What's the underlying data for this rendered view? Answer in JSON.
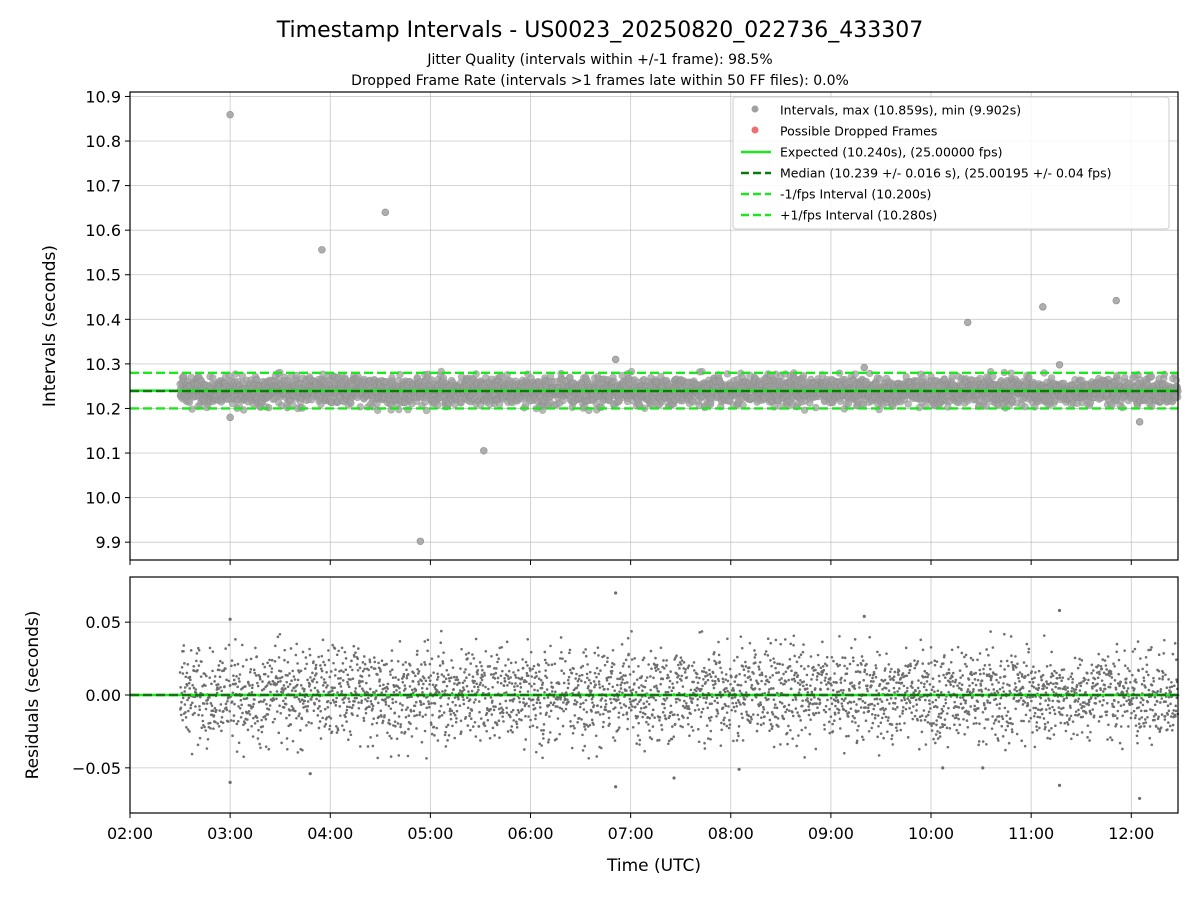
{
  "chart_data": [
    {
      "type": "scatter",
      "title": "Timestamp Intervals - US0023_20250820_022736_433307",
      "subtitle_lines": [
        "Jitter Quality (intervals within +/-1 frame): 98.5%",
        "Dropped Frame Rate (intervals >1 frames late within 50 FF files): 0.0%"
      ],
      "xlabel": "",
      "ylabel": "Intervals (seconds)",
      "x_unit": "time (UTC)",
      "xlim": [
        "02:00",
        "12:28"
      ],
      "ylim": [
        9.86,
        10.91
      ],
      "y_ticks": [
        "9.9",
        "10.0",
        "10.1",
        "10.2",
        "10.3",
        "10.4",
        "10.5",
        "10.6",
        "10.7",
        "10.8",
        "10.9"
      ],
      "x_ticks": [
        "02:00",
        "03:00",
        "04:00",
        "05:00",
        "06:00",
        "07:00",
        "08:00",
        "09:00",
        "10:00",
        "11:00",
        "12:00"
      ],
      "grid": true,
      "legend_position": "top-right",
      "legend": [
        {
          "label": "Intervals, max (10.859s), min (9.902s)",
          "kind": "marker",
          "color": "#a0a0a0"
        },
        {
          "label": "Possible Dropped Frames",
          "kind": "marker",
          "color": "#f07070"
        },
        {
          "label": "Expected (10.240s), (25.00000 fps)",
          "kind": "solid",
          "color": "#1ee61e"
        },
        {
          "label": "Median (10.239 +/- 0.016 s), (25.00195 +/- 0.04 fps)",
          "kind": "dashed",
          "color": "#0a7a0a"
        },
        {
          "label": "-1/fps Interval (10.200s)",
          "kind": "dashed",
          "color": "#1ee61e"
        },
        {
          "label": "+1/fps Interval (10.280s)",
          "kind": "dashed",
          "color": "#1ee61e"
        }
      ],
      "reference_lines": {
        "expected": 10.24,
        "median": 10.239,
        "minus_one_fps": 10.2,
        "plus_one_fps": 10.28
      },
      "series": [
        {
          "name": "Intervals, max (10.859s), min (9.902s)",
          "data_range": [
            "02:30",
            "12:28"
          ],
          "typical_center": 10.239,
          "typical_spread": 0.016,
          "outliers": [
            {
              "x": "03:00",
              "y": 10.859
            },
            {
              "x": "03:55",
              "y": 10.556
            },
            {
              "x": "04:33",
              "y": 10.64
            },
            {
              "x": "04:54",
              "y": 9.902
            },
            {
              "x": "05:32",
              "y": 10.105
            },
            {
              "x": "10:22",
              "y": 10.393
            },
            {
              "x": "11:07",
              "y": 10.428
            },
            {
              "x": "11:51",
              "y": 10.442
            },
            {
              "x": "03:00",
              "y": 10.18
            },
            {
              "x": "12:05",
              "y": 10.17
            },
            {
              "x": "06:51",
              "y": 10.31
            },
            {
              "x": "11:17",
              "y": 10.298
            },
            {
              "x": "09:20",
              "y": 10.292
            }
          ]
        }
      ]
    },
    {
      "type": "scatter",
      "title": "",
      "xlabel": "Time (UTC)",
      "ylabel": "Residuals (seconds)",
      "xlim": [
        "02:00",
        "12:28"
      ],
      "ylim": [
        -0.081,
        0.081
      ],
      "y_ticks": [
        "0.05",
        "0.00",
        "−0.05"
      ],
      "x_ticks": [
        "02:00",
        "03:00",
        "04:00",
        "05:00",
        "06:00",
        "07:00",
        "08:00",
        "09:00",
        "10:00",
        "11:00",
        "12:00"
      ],
      "grid": true,
      "reference_lines": {
        "zero": 0.0
      },
      "series": [
        {
          "name": "",
          "data_range": [
            "02:30",
            "12:28"
          ],
          "typical_spread": 0.016,
          "outliers": [
            {
              "x": "06:51",
              "y": 0.07
            },
            {
              "x": "11:17",
              "y": 0.058
            },
            {
              "x": "09:20",
              "y": 0.054
            },
            {
              "x": "03:00",
              "y": 0.052
            },
            {
              "x": "03:00",
              "y": -0.06
            },
            {
              "x": "03:48",
              "y": -0.054
            },
            {
              "x": "06:51",
              "y": -0.063
            },
            {
              "x": "07:26",
              "y": -0.057
            },
            {
              "x": "08:05",
              "y": -0.051
            },
            {
              "x": "10:07",
              "y": -0.05
            },
            {
              "x": "10:31",
              "y": -0.05
            },
            {
              "x": "11:17",
              "y": -0.062
            },
            {
              "x": "12:05",
              "y": -0.071
            }
          ]
        }
      ]
    }
  ]
}
